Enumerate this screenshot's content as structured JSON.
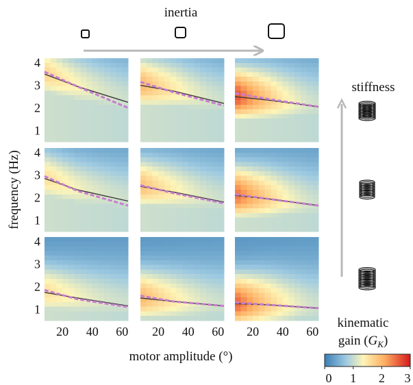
{
  "chart_data": {
    "type": "heatmap",
    "layout": "3x3 grid of heatmaps",
    "top_label": "inertia",
    "right_label": "stiffness",
    "xlabel": "motor amplitude (°)",
    "ylabel": "frequency (Hz)",
    "xlim": [
      8,
      64
    ],
    "ylim": [
      0.5,
      4.2
    ],
    "x_ticks": [
      "20",
      "40",
      "60"
    ],
    "y_ticks": [
      "1",
      "2",
      "3",
      "4"
    ],
    "x_tick_values": [
      20,
      40,
      60
    ],
    "y_tick_values": [
      1,
      2,
      3,
      4
    ],
    "colorbar": {
      "title_line1": "kinematic",
      "title_line2": "gain (",
      "title_symbol": "G",
      "title_subscript": "K",
      "title_close": ")",
      "range": [
        0,
        3
      ],
      "ticks": [
        "0",
        "1",
        "2",
        "3"
      ],
      "colors": [
        "#3b7fb6",
        "#9ecae1",
        "#fdf5b8",
        "#fdae61",
        "#d7191c"
      ]
    },
    "line_styles": {
      "solid_color": "#3a3a3a",
      "dashed_color": "#c77dd1"
    },
    "panels": [
      {
        "row": 0,
        "col": 0,
        "peak_gain": 1.7,
        "ridge_solid": [
          [
            8,
            3.5
          ],
          [
            30,
            2.95
          ],
          [
            64,
            2.25
          ]
        ],
        "ridge_dashed": [
          [
            8,
            3.6
          ],
          [
            30,
            2.95
          ],
          [
            64,
            2.0
          ]
        ]
      },
      {
        "row": 0,
        "col": 1,
        "peak_gain": 2.0,
        "ridge_solid": [
          [
            8,
            3.0
          ],
          [
            30,
            2.75
          ],
          [
            64,
            2.2
          ]
        ],
        "ridge_dashed": [
          [
            8,
            3.15
          ],
          [
            30,
            2.7
          ],
          [
            64,
            2.1
          ]
        ]
      },
      {
        "row": 0,
        "col": 2,
        "peak_gain": 2.7,
        "ridge_solid": [
          [
            8,
            2.5
          ],
          [
            30,
            2.35
          ],
          [
            64,
            2.05
          ]
        ],
        "ridge_dashed": [
          [
            8,
            2.65
          ],
          [
            30,
            2.4
          ],
          [
            64,
            2.05
          ]
        ]
      },
      {
        "row": 1,
        "col": 0,
        "peak_gain": 1.6,
        "ridge_solid": [
          [
            8,
            2.85
          ],
          [
            30,
            2.35
          ],
          [
            64,
            1.85
          ]
        ],
        "ridge_dashed": [
          [
            8,
            2.95
          ],
          [
            30,
            2.3
          ],
          [
            64,
            1.65
          ]
        ]
      },
      {
        "row": 1,
        "col": 1,
        "peak_gain": 1.9,
        "ridge_solid": [
          [
            8,
            2.5
          ],
          [
            30,
            2.25
          ],
          [
            64,
            1.8
          ]
        ],
        "ridge_dashed": [
          [
            8,
            2.55
          ],
          [
            30,
            2.2
          ],
          [
            64,
            1.75
          ]
        ]
      },
      {
        "row": 1,
        "col": 2,
        "peak_gain": 2.5,
        "ridge_solid": [
          [
            8,
            2.1
          ],
          [
            30,
            1.95
          ],
          [
            64,
            1.65
          ]
        ],
        "ridge_dashed": [
          [
            8,
            2.15
          ],
          [
            30,
            1.95
          ],
          [
            64,
            1.65
          ]
        ]
      },
      {
        "row": 2,
        "col": 0,
        "peak_gain": 1.6,
        "ridge_solid": [
          [
            8,
            1.75
          ],
          [
            30,
            1.5
          ],
          [
            64,
            1.15
          ]
        ],
        "ridge_dashed": [
          [
            8,
            1.85
          ],
          [
            30,
            1.45
          ],
          [
            64,
            1.1
          ]
        ]
      },
      {
        "row": 2,
        "col": 1,
        "peak_gain": 2.0,
        "ridge_solid": [
          [
            8,
            1.5
          ],
          [
            30,
            1.35
          ],
          [
            64,
            1.15
          ]
        ],
        "ridge_dashed": [
          [
            8,
            1.6
          ],
          [
            30,
            1.35
          ],
          [
            64,
            1.15
          ]
        ]
      },
      {
        "row": 2,
        "col": 2,
        "peak_gain": 2.6,
        "ridge_solid": [
          [
            8,
            1.25
          ],
          [
            30,
            1.2
          ],
          [
            64,
            1.05
          ]
        ],
        "ridge_dashed": [
          [
            8,
            1.3
          ],
          [
            30,
            1.2
          ],
          [
            64,
            1.05
          ]
        ]
      }
    ]
  }
}
